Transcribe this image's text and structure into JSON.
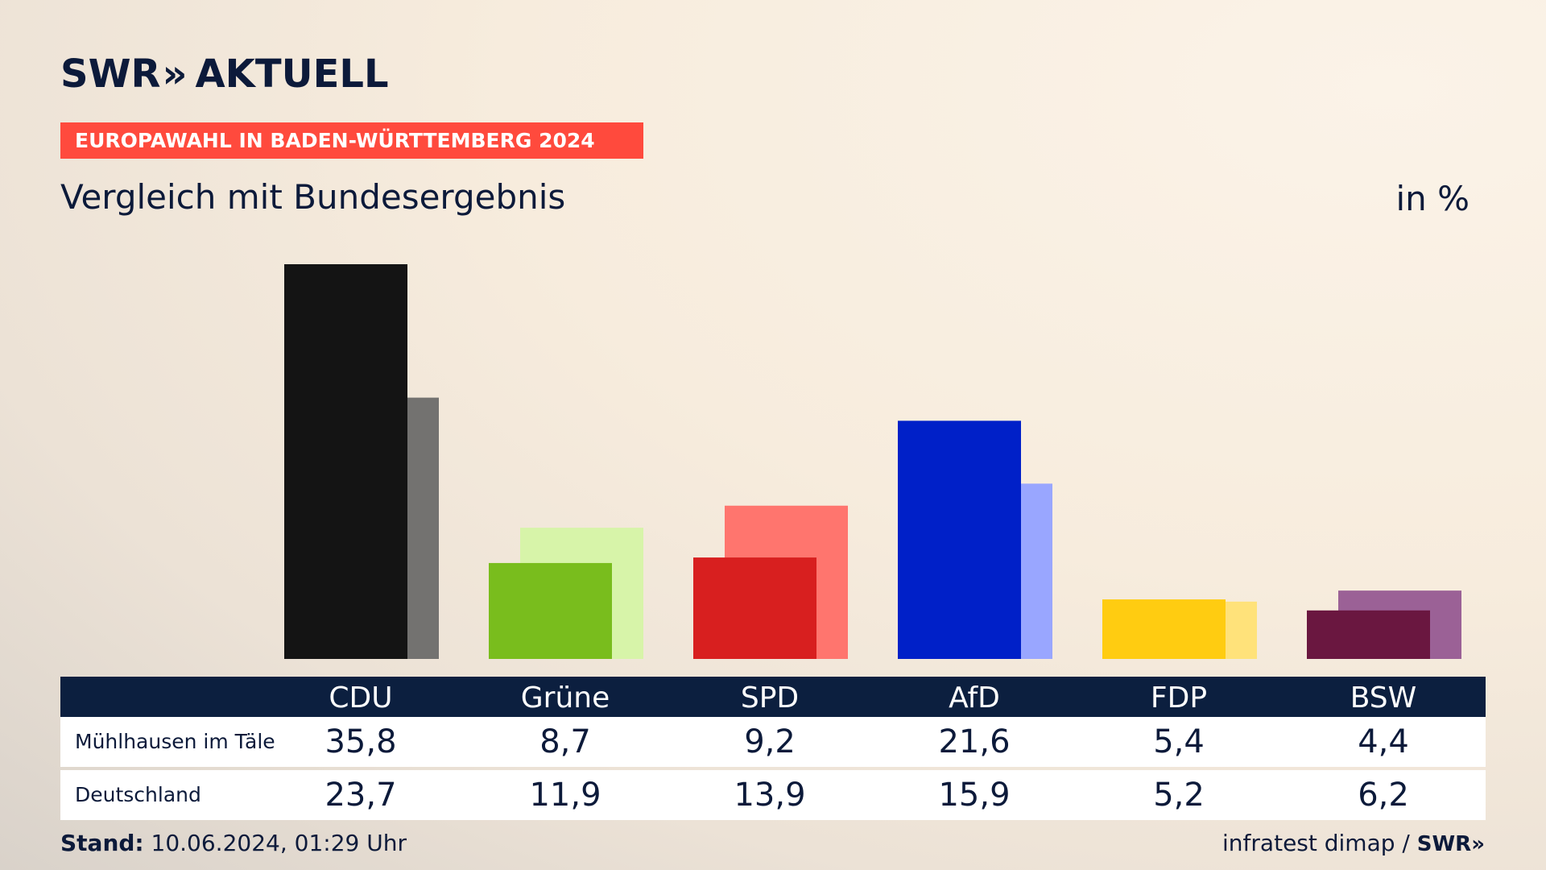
{
  "brand": {
    "logo_text": "SWR",
    "logo_chevrons": "»",
    "logo_suffix": "AKTUELL"
  },
  "banner": "EUROPAWAHL IN BADEN-WÜRTTEMBERG 2024",
  "subtitle": "Vergleich mit Bundesergebnis",
  "unit": "in %",
  "chart_data": {
    "type": "bar",
    "categories": [
      "CDU",
      "Grüne",
      "SPD",
      "AfD",
      "FDP",
      "BSW"
    ],
    "series": [
      {
        "name": "Mühlhausen im Täle",
        "values": [
          "35,8",
          "8,7",
          "9,2",
          "21,6",
          "5,4",
          "4,4"
        ]
      },
      {
        "name": "Deutschland",
        "values": [
          "23,7",
          "11,9",
          "13,9",
          "15,9",
          "5,2",
          "6,2"
        ]
      }
    ],
    "colors_primary": [
      "#141414",
      "#79bd1d",
      "#d81f1f",
      "#0020c8",
      "#ffcc11",
      "#6a1740"
    ],
    "colors_secondary": [
      "#737270",
      "#d7f4a9",
      "#ff756e",
      "#99a6ff",
      "#ffe27a",
      "#9b6196"
    ],
    "ylim": [
      0,
      36
    ]
  },
  "footer": {
    "stand_label": "Stand:",
    "stand_value": " 10.06.2024, 01:29 Uhr",
    "source": "infratest dimap /",
    "source_brand": "SWR»"
  }
}
